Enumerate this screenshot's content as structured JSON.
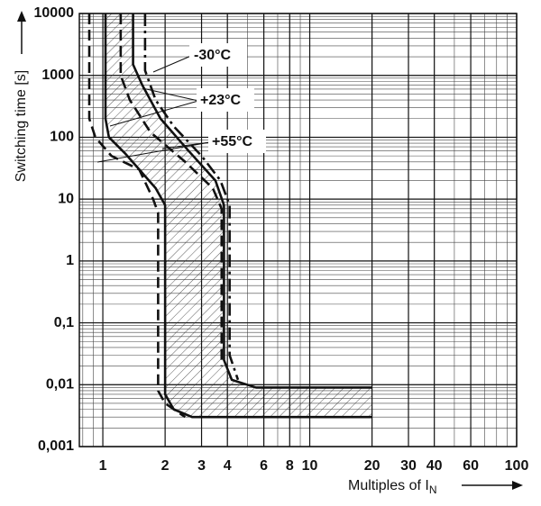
{
  "chart_data": {
    "type": "line",
    "y_label": "Switching time [s]",
    "x_label": {
      "text": "Multiples of I",
      "subscript": "N"
    },
    "xscale": "log",
    "yscale": "log",
    "xlim": [
      0.77,
      100
    ],
    "ylim": [
      0.001,
      10000
    ],
    "xticks": [
      1,
      2,
      3,
      4,
      6,
      8,
      10,
      20,
      30,
      40,
      60,
      100
    ],
    "yticks": [
      {
        "value": 0.001,
        "label": "0,001"
      },
      {
        "value": 0.01,
        "label": "0,01"
      },
      {
        "value": 0.1,
        "label": "0,1"
      },
      1,
      10,
      100,
      1000,
      10000
    ],
    "grid": true,
    "minor_grid": true,
    "hatch_between": 1,
    "series": [
      {
        "name": "-30°C",
        "color": "#111111",
        "dash": "dashdot",
        "curves": [
          {
            "x": [
              1.6,
              1.6,
              1.8,
              2.2,
              3,
              3.7,
              4.1,
              4.1,
              4.5
            ],
            "values": [
              10000,
              1200,
              400,
              150,
              50,
              20,
              8,
              0.03,
              0.012
            ]
          }
        ]
      },
      {
        "name": "+23°C",
        "color": "#111111",
        "dash": "solid",
        "curves": [
          {
            "x": [
              1.03,
              1.03,
              1.07,
              1.28,
              1.8,
              2,
              2,
              2.2,
              2.7,
              20
            ],
            "values": [
              10000,
              200,
              100,
              55,
              15,
              8,
              0.007,
              0.004,
              0.003,
              0.003
            ]
          },
          {
            "x": [
              1.4,
              1.4,
              1.55,
              1.9,
              2.6,
              3.5,
              3.85,
              3.85,
              4.2,
              5.5,
              20
            ],
            "values": [
              10000,
              1500,
              700,
              200,
              60,
              20,
              8,
              0.025,
              0.012,
              0.009,
              0.009
            ]
          }
        ]
      },
      {
        "name": "+55°C",
        "color": "#111111",
        "dash": "dashed",
        "curves": [
          {
            "x": [
              0.86,
              0.86,
              0.92,
              1.1,
              1.5,
              1.75,
              1.85,
              1.85,
              2,
              2.5
            ],
            "values": [
              10000,
              200,
              100,
              50,
              30,
              10,
              6,
              0.008,
              0.005,
              0.003
            ]
          },
          {
            "x": [
              1.22,
              1.22,
              1.35,
              1.7,
              2.5,
              3.4,
              3.75,
              3.75
            ],
            "values": [
              10000,
              1000,
              400,
              120,
              40,
              15,
              7,
              0.02
            ]
          }
        ]
      }
    ]
  }
}
